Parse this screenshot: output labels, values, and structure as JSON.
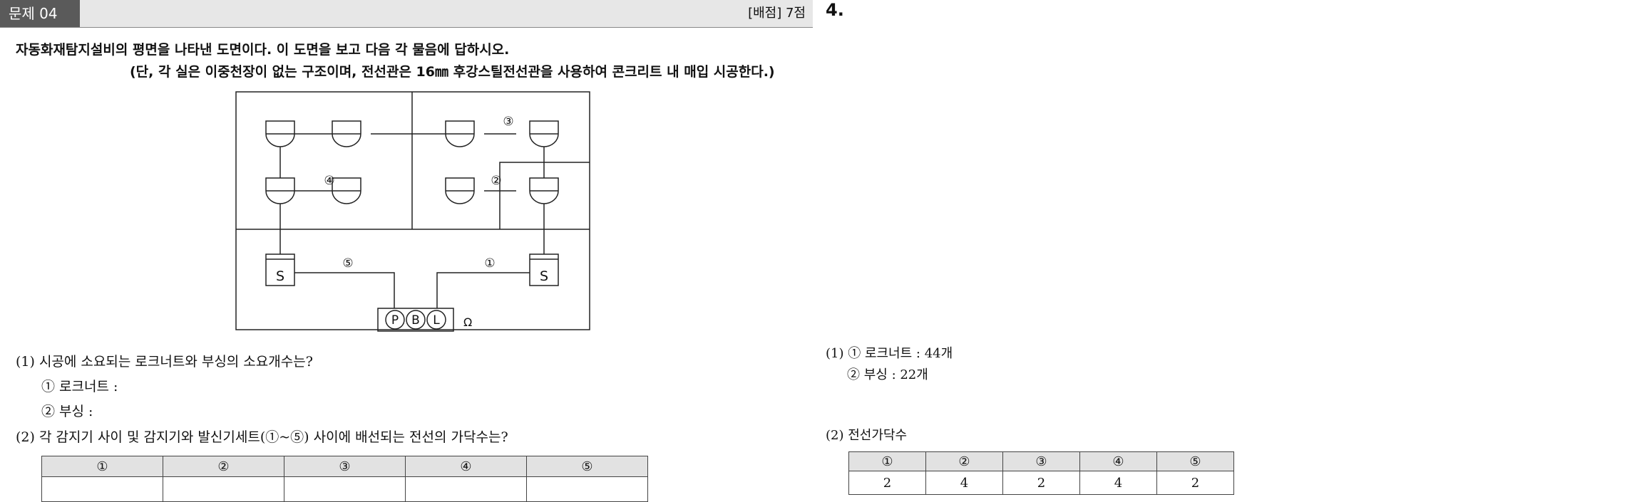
{
  "header": {
    "tag": "문제 04",
    "score": "[배점] 7점",
    "answer_number": "4."
  },
  "question": {
    "text": "자동화재탐지설비의 평면을 나타낸 도면이다. 이 도면을 보고 다음 각 물음에 답하시오.",
    "note": "(단, 각 실은 이중천장이 없는 구조이며, 전선관은 16㎜ 후강스틸전선관을 사용하여 콘크리트 내 매입 시공한다.)"
  },
  "diagram": {
    "marks": [
      "③",
      "④",
      "②",
      "⑤",
      "①"
    ],
    "S_label": "S",
    "pbl": [
      "P",
      "B",
      "L"
    ],
    "omega": "Ω"
  },
  "sub1": {
    "title": "(1) 시공에 소요되는 로크너트와 부싱의 소요개수는?",
    "item1": "① 로크너트 :",
    "item2": "② 부싱 :"
  },
  "sub2": {
    "title": "(2) 각 감지기 사이 및 감지기와 발신기세트(①~⑤) 사이에 배선되는 전선의 가닥수는?"
  },
  "left_table": {
    "headers": [
      "①",
      "②",
      "③",
      "④",
      "⑤"
    ]
  },
  "answer": {
    "a1_line1": "(1) ① 로크너트 : 44개",
    "a1_line2": "② 부싱 : 22개",
    "a2_title": "(2) 전선가닥수",
    "table": {
      "headers": [
        "①",
        "②",
        "③",
        "④",
        "⑤"
      ],
      "values": [
        "2",
        "4",
        "2",
        "4",
        "2"
      ]
    }
  }
}
